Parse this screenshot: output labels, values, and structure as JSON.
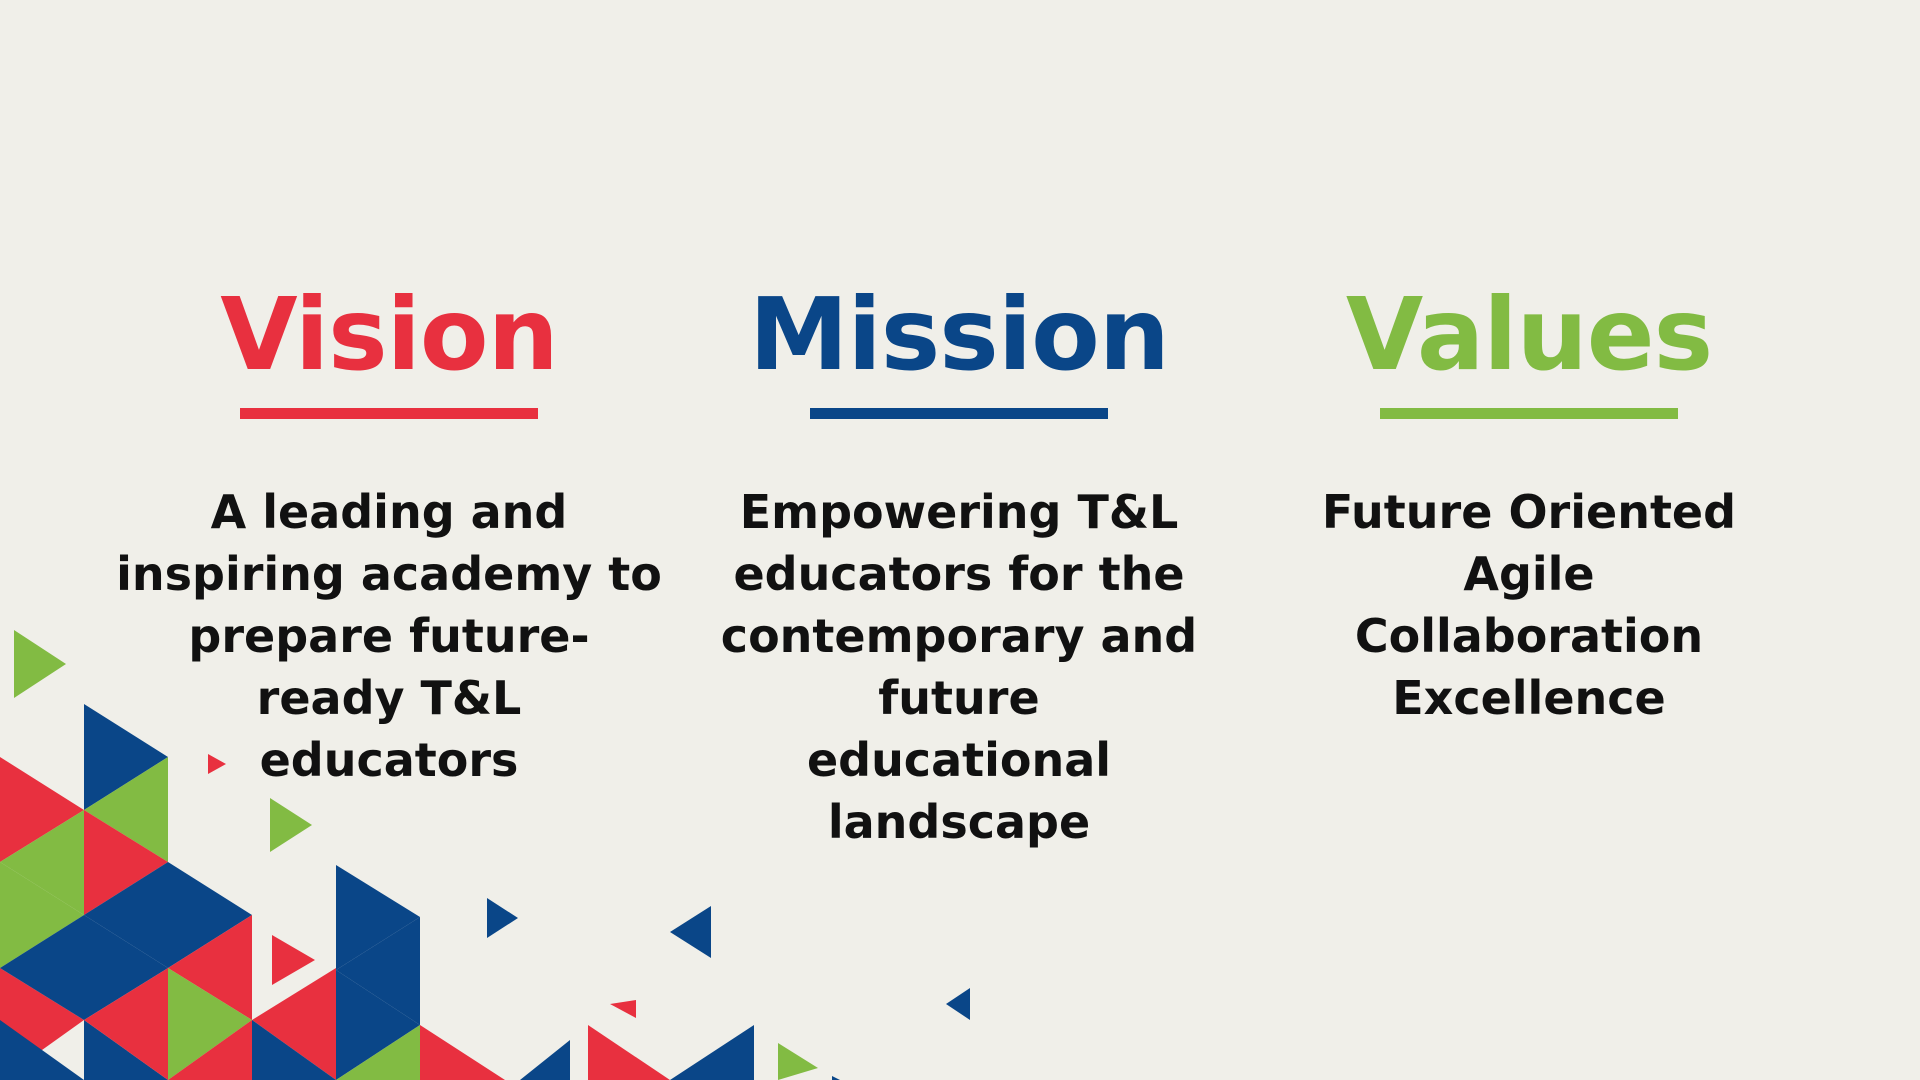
{
  "colors": {
    "background": "#f0efe9",
    "red": "#e8303f",
    "blue": "#0a4688",
    "green": "#82bb43",
    "text": "#111111"
  },
  "sections": [
    {
      "id": "vision",
      "title": "Vision",
      "color": "#e8303f",
      "lines": [
        "A leading and",
        "inspiring academy to",
        "prepare future-",
        "ready T&L",
        "educators"
      ]
    },
    {
      "id": "mission",
      "title": "Mission",
      "color": "#0a4688",
      "lines": [
        "Empowering T&L",
        "educators for the",
        "contemporary and",
        "future",
        "educational",
        "landscape"
      ]
    },
    {
      "id": "values",
      "title": "Values",
      "color": "#82bb43",
      "lines": [
        "Future Oriented",
        "Agile",
        "Collaboration",
        "Excellence"
      ]
    }
  ]
}
